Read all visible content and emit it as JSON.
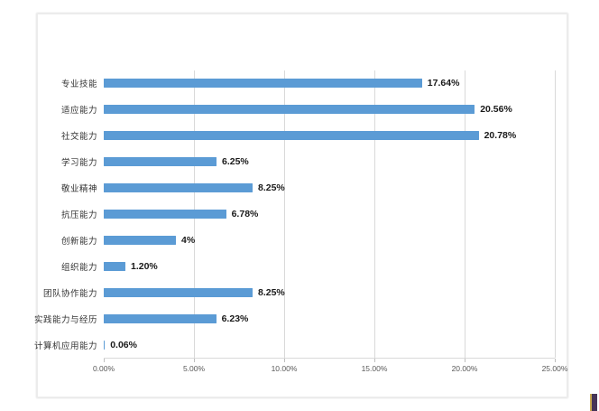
{
  "chart_data": {
    "type": "bar",
    "orientation": "horizontal",
    "title": "",
    "categories": [
      "专业技能",
      "适应能力",
      "社交能力",
      "学习能力",
      "敬业精神",
      "抗压能力",
      "创新能力",
      "组织能力",
      "团队协作能力",
      "实践能力与经历",
      "计算机应用能力"
    ],
    "values": [
      17.64,
      20.56,
      20.78,
      6.25,
      8.25,
      6.78,
      4,
      1.2,
      8.25,
      6.23,
      0.06
    ],
    "value_labels": [
      "17.64%",
      "20.56%",
      "20.78%",
      "6.25%",
      "8.25%",
      "6.78%",
      "4%",
      "1.20%",
      "8.25%",
      "6.23%",
      "0.06%"
    ],
    "x_ticks": [
      "0.00%",
      "5.00%",
      "10.00%",
      "15.00%",
      "20.00%",
      "25.00%"
    ],
    "x_tick_values": [
      0,
      5,
      10,
      15,
      20,
      25
    ],
    "xlim": [
      0,
      25
    ],
    "grid": "vertical-gridlines-on",
    "legend": "none",
    "colors": {
      "bar": "#5B9BD5",
      "gridline": "#d9d9d9",
      "category_label": "#333333",
      "value_label": "#1a1a1a",
      "tick_label": "#595959"
    }
  }
}
